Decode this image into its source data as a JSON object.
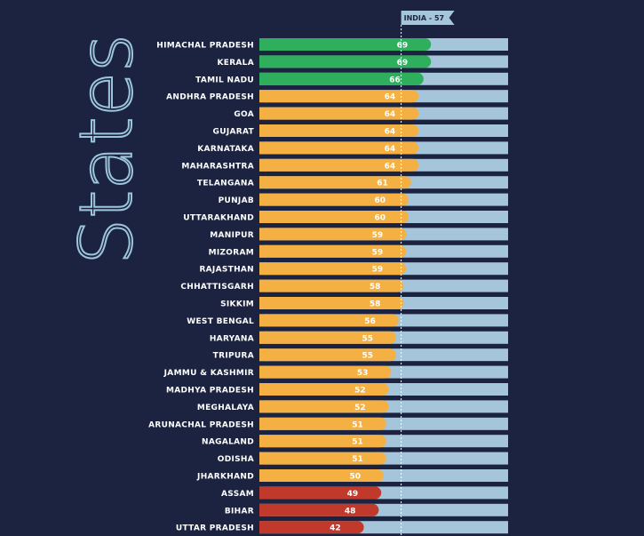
{
  "chart_data": {
    "type": "bar",
    "orientation": "horizontal",
    "title": "States",
    "categories": [
      "HIMACHAL PRADESH",
      "KERALA",
      "TAMIL NADU",
      "ANDHRA PRADESH",
      "GOA",
      "GUJARAT",
      "KARNATAKA",
      "MAHARASHTRA",
      "TELANGANA",
      "PUNJAB",
      "UTTARAKHAND",
      "MANIPUR",
      "MIZORAM",
      "RAJASTHAN",
      "CHHATTISGARH",
      "SIKKIM",
      "WEST BENGAL",
      "HARYANA",
      "TRIPURA",
      "JAMMU & KASHMIR",
      "MADHYA PRADESH",
      "MEGHALAYA",
      "ARUNACHAL PRADESH",
      "NAGALAND",
      "ODISHA",
      "JHARKHAND",
      "ASSAM",
      "BIHAR",
      "UTTAR PRADESH"
    ],
    "values": [
      69,
      69,
      66,
      64,
      64,
      64,
      64,
      64,
      61,
      60,
      60,
      59,
      59,
      59,
      58,
      58,
      56,
      55,
      55,
      53,
      52,
      52,
      51,
      51,
      51,
      50,
      49,
      48,
      42
    ],
    "colors": [
      "#2fae5e",
      "#2fae5e",
      "#2fae5e",
      "#f5b043",
      "#f5b043",
      "#f5b043",
      "#f5b043",
      "#f5b043",
      "#f5b043",
      "#f5b043",
      "#f5b043",
      "#f5b043",
      "#f5b043",
      "#f5b043",
      "#f5b043",
      "#f5b043",
      "#f5b043",
      "#f5b043",
      "#f5b043",
      "#f5b043",
      "#f5b043",
      "#f5b043",
      "#f5b043",
      "#f5b043",
      "#f5b043",
      "#f5b043",
      "#c0392b",
      "#c0392b",
      "#c0392b"
    ],
    "track_color": "#a5c5da",
    "xlim": [
      0,
      100
    ],
    "reference": {
      "label": "INDIA - 57",
      "value": 57
    }
  }
}
